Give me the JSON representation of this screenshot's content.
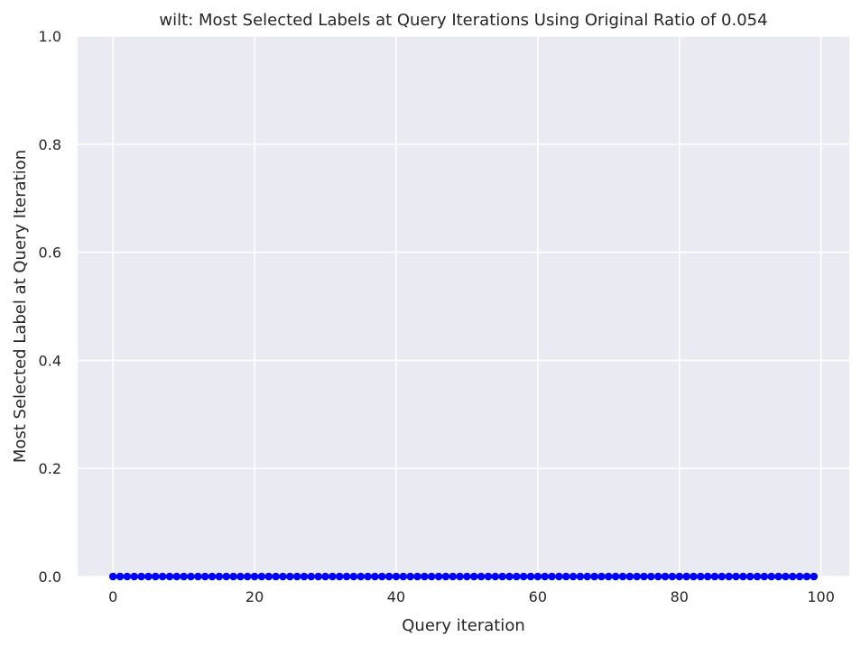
{
  "chart_data": {
    "type": "scatter",
    "title": "wilt: Most Selected Labels at Query Iterations Using Original Ratio of 0.054",
    "xlabel": "Query iteration",
    "ylabel": "Most Selected Label at Query Iteration",
    "xlim": [
      -5,
      104
    ],
    "ylim": [
      0,
      1
    ],
    "xticks": [
      0,
      20,
      40,
      60,
      80,
      100
    ],
    "yticks": [
      0.0,
      0.2,
      0.4,
      0.6,
      0.8,
      1.0
    ],
    "xtick_labels": [
      "0",
      "20",
      "40",
      "60",
      "80",
      "100"
    ],
    "ytick_labels": [
      "0.0",
      "0.2",
      "0.4",
      "0.6",
      "0.8",
      "1.0"
    ],
    "grid": true,
    "background": "#eaeaf2",
    "gridColor": "#ffffff",
    "markerColor": "#0000ff",
    "series": [
      {
        "x": [
          0,
          1,
          2,
          3,
          4,
          5,
          6,
          7,
          8,
          9,
          10,
          11,
          12,
          13,
          14,
          15,
          16,
          17,
          18,
          19,
          20,
          21,
          22,
          23,
          24,
          25,
          26,
          27,
          28,
          29,
          30,
          31,
          32,
          33,
          34,
          35,
          36,
          37,
          38,
          39,
          40,
          41,
          42,
          43,
          44,
          45,
          46,
          47,
          48,
          49,
          50,
          51,
          52,
          53,
          54,
          55,
          56,
          57,
          58,
          59,
          60,
          61,
          62,
          63,
          64,
          65,
          66,
          67,
          68,
          69,
          70,
          71,
          72,
          73,
          74,
          75,
          76,
          77,
          78,
          79,
          80,
          81,
          82,
          83,
          84,
          85,
          86,
          87,
          88,
          89,
          90,
          91,
          92,
          93,
          94,
          95,
          96,
          97,
          98,
          99
        ],
        "y": [
          0,
          0,
          0,
          0,
          0,
          0,
          0,
          0,
          0,
          0,
          0,
          0,
          0,
          0,
          0,
          0,
          0,
          0,
          0,
          0,
          0,
          0,
          0,
          0,
          0,
          0,
          0,
          0,
          0,
          0,
          0,
          0,
          0,
          0,
          0,
          0,
          0,
          0,
          0,
          0,
          0,
          0,
          0,
          0,
          0,
          0,
          0,
          0,
          0,
          0,
          0,
          0,
          0,
          0,
          0,
          0,
          0,
          0,
          0,
          0,
          0,
          0,
          0,
          0,
          0,
          0,
          0,
          0,
          0,
          0,
          0,
          0,
          0,
          0,
          0,
          0,
          0,
          0,
          0,
          0,
          0,
          0,
          0,
          0,
          0,
          0,
          0,
          0,
          0,
          0,
          0,
          0,
          0,
          0,
          0,
          0,
          0,
          0,
          0,
          0
        ]
      }
    ]
  }
}
